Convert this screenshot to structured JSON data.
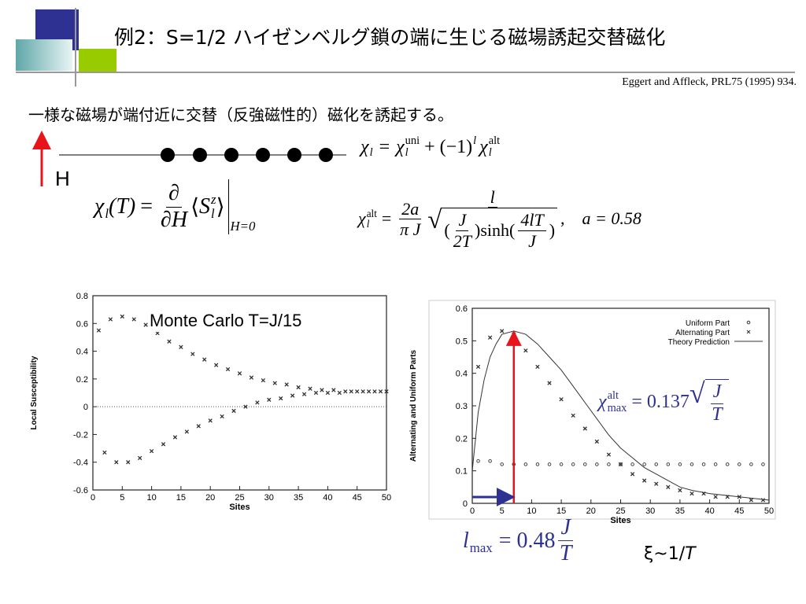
{
  "header": {
    "title": "例2：S=1/2 ハイゼンベルグ鎖の端に生じる磁場誘起交替磁化",
    "reference": "Eggert and Affleck, PRL75 (1995) 934."
  },
  "statement": "一様な磁場が端付近に交替（反強磁性的）磁化を誘起する。",
  "field_label": "H",
  "formulas": {
    "chi_decomposition": [
      "χ",
      "l",
      "=",
      "χ",
      "uni",
      "l",
      "+",
      "(−1)",
      "l",
      "χ",
      "alt",
      "l"
    ],
    "chi_definition": [
      "χ",
      "l",
      "(T)",
      "=",
      "∂",
      "∂H",
      "⟨",
      "S",
      "z",
      "l",
      "⟩",
      "H=0"
    ],
    "chi_alt": [
      "χ",
      "alt",
      "l",
      "=",
      "2a",
      "π J",
      "l",
      "J",
      "2T",
      "sinh",
      "4lT",
      "J",
      ",",
      "a = 0.58"
    ],
    "chi_max": [
      "χ",
      "alt",
      "max",
      "= 0.137",
      "J",
      "T"
    ],
    "l_max": [
      "l",
      "max",
      "= 0.48",
      "J",
      "T"
    ],
    "correlation_length": [
      "ξ~1/",
      "T"
    ]
  },
  "chart_data": [
    {
      "type": "scatter",
      "xlabel": "Sites",
      "ylabel": "Local Susceptibility",
      "annotation": "Monte Carlo T=J/15",
      "xlim": [
        0,
        50
      ],
      "ylim": [
        -0.6,
        0.8
      ],
      "xticks": [
        0,
        5,
        10,
        15,
        20,
        25,
        30,
        35,
        40,
        45,
        50
      ],
      "yticks": [
        -0.6,
        -0.4,
        -0.2,
        0,
        0.2,
        0.4,
        0.6,
        0.8
      ],
      "zero_line": true,
      "series": [
        {
          "color": "#333333",
          "marker": "x",
          "x": [
            1,
            3,
            5,
            7,
            9,
            11,
            13,
            15,
            17,
            19,
            21,
            23,
            25,
            27,
            29,
            31,
            33,
            35,
            37,
            39,
            41,
            43,
            45,
            47,
            49
          ],
          "values": [
            0.55,
            0.63,
            0.65,
            0.63,
            0.59,
            0.53,
            0.47,
            0.43,
            0.38,
            0.34,
            0.3,
            0.27,
            0.24,
            0.21,
            0.19,
            0.17,
            0.16,
            0.14,
            0.13,
            0.12,
            0.12,
            0.11,
            0.11,
            0.11,
            0.11
          ]
        },
        {
          "color": "#333333",
          "marker": "x",
          "x": [
            2,
            4,
            6,
            8,
            10,
            12,
            14,
            16,
            18,
            20,
            22,
            24,
            26,
            28,
            30,
            32,
            34,
            36,
            38,
            40,
            42,
            44,
            46,
            48,
            50
          ],
          "values": [
            -0.33,
            -0.4,
            -0.4,
            -0.37,
            -0.32,
            -0.27,
            -0.22,
            -0.18,
            -0.14,
            -0.1,
            -0.07,
            -0.03,
            0.0,
            0.03,
            0.05,
            0.06,
            0.08,
            0.09,
            0.1,
            0.1,
            0.1,
            0.11,
            0.11,
            0.11,
            0.11
          ]
        }
      ]
    },
    {
      "type": "scatter",
      "xlabel": "Sites",
      "ylabel": "Alternating and Uniform Parts",
      "xlim": [
        0,
        50
      ],
      "ylim": [
        0,
        0.6
      ],
      "xticks": [
        0,
        5,
        10,
        15,
        20,
        25,
        30,
        35,
        40,
        45,
        50
      ],
      "yticks": [
        0,
        0.1,
        0.2,
        0.3,
        0.4,
        0.5,
        0.6
      ],
      "legend": "upper right",
      "series": [
        {
          "name": "Uniform Part",
          "color": "#333333",
          "marker": "o",
          "x": [
            1,
            3,
            5,
            7,
            9,
            11,
            13,
            15,
            17,
            19,
            21,
            23,
            25,
            27,
            29,
            31,
            33,
            35,
            37,
            39,
            41,
            43,
            45,
            47,
            49
          ],
          "values": [
            0.13,
            0.13,
            0.12,
            0.12,
            0.12,
            0.12,
            0.12,
            0.12,
            0.12,
            0.12,
            0.12,
            0.12,
            0.12,
            0.12,
            0.12,
            0.12,
            0.12,
            0.12,
            0.12,
            0.12,
            0.12,
            0.12,
            0.12,
            0.12,
            0.12
          ]
        },
        {
          "name": "Alternating Part",
          "color": "#333333",
          "marker": "x",
          "x": [
            1,
            3,
            5,
            7,
            9,
            11,
            13,
            15,
            17,
            19,
            21,
            23,
            25,
            27,
            29,
            31,
            33,
            35,
            37,
            39,
            41,
            43,
            45,
            47,
            49
          ],
          "values": [
            0.42,
            0.51,
            0.53,
            0.52,
            0.47,
            0.42,
            0.37,
            0.32,
            0.27,
            0.23,
            0.19,
            0.15,
            0.12,
            0.09,
            0.07,
            0.06,
            0.05,
            0.04,
            0.03,
            0.03,
            0.02,
            0.02,
            0.02,
            0.01,
            0.01
          ]
        },
        {
          "name": "Theory Prediction",
          "color": "#333333",
          "marker": "line",
          "x": [
            0,
            1,
            2,
            3,
            4,
            5,
            7,
            9,
            11,
            13,
            15,
            17,
            19,
            21,
            23,
            25,
            27,
            29,
            31,
            33,
            35,
            37,
            40,
            45,
            50
          ],
          "values": [
            0.1,
            0.28,
            0.38,
            0.45,
            0.49,
            0.52,
            0.53,
            0.52,
            0.49,
            0.45,
            0.41,
            0.36,
            0.31,
            0.26,
            0.21,
            0.17,
            0.14,
            0.11,
            0.09,
            0.07,
            0.05,
            0.04,
            0.03,
            0.02,
            0.01
          ]
        }
      ]
    }
  ]
}
